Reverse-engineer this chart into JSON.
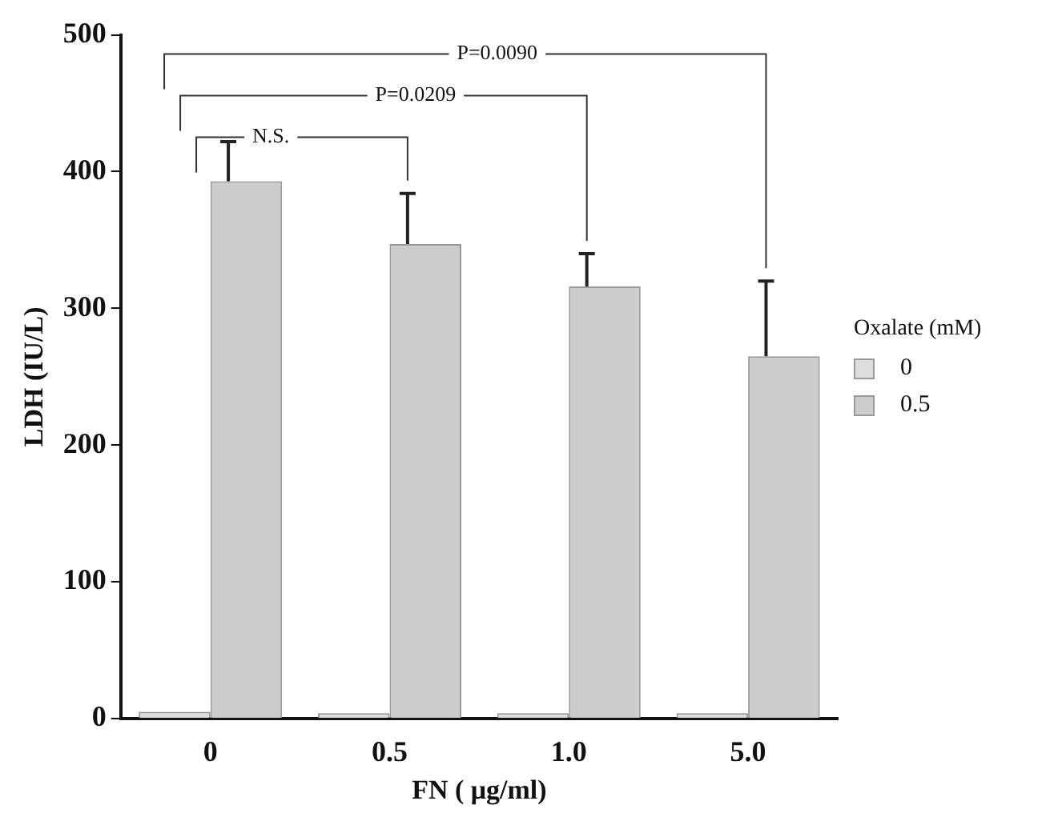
{
  "chart_data": {
    "type": "bar",
    "xlabel": "FN ( μg/ml)",
    "ylabel": "LDH (IU/L)",
    "legend_title": "Oxalate (mM)",
    "categories": [
      "0",
      "0.5",
      "1.0",
      "5.0"
    ],
    "series": [
      {
        "name": "0",
        "color": "#dcdcdc",
        "values": [
          5,
          4,
          4,
          4
        ]
      },
      {
        "name": "0.5",
        "color": "#cccccc",
        "values": [
          393,
          347,
          316,
          265
        ],
        "errors": [
          [
            393,
            422
          ],
          [
            347,
            384
          ],
          [
            316,
            340
          ],
          [
            265,
            320
          ]
        ]
      }
    ],
    "ylim": [
      0,
      500
    ],
    "yticks": [
      0,
      100,
      200,
      300,
      400,
      500
    ],
    "grid": false,
    "legend": "right",
    "annotations": [
      "N.S.",
      "P=0.0209",
      "P=0.0090"
    ]
  }
}
